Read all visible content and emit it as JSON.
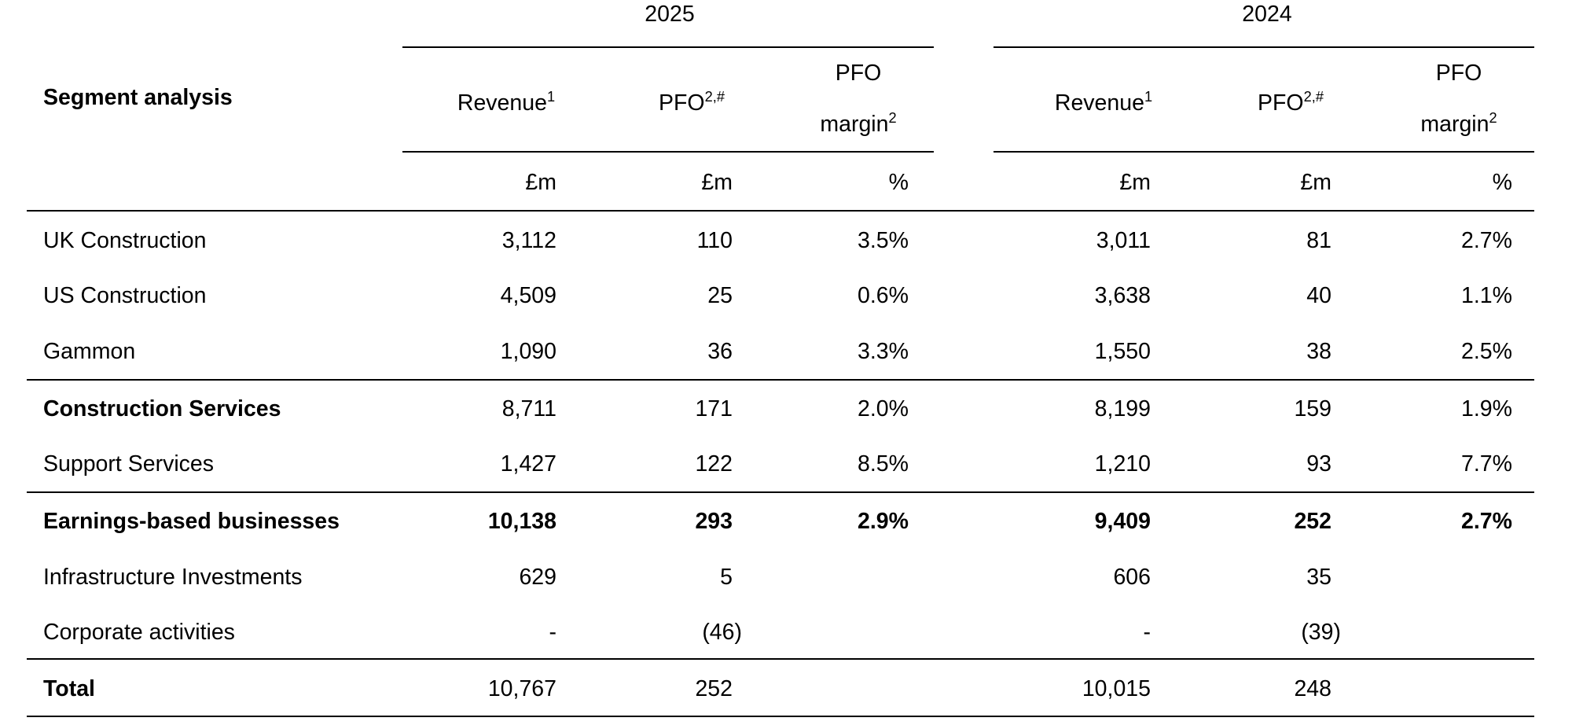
{
  "years": {
    "current": "2025",
    "prior": "2024"
  },
  "header": {
    "title": "Segment analysis",
    "revenue": "Revenue",
    "revenue_sup": "1",
    "pfo": "PFO",
    "pfo_sup": "2,#",
    "pfo_margin_line1": "PFO",
    "pfo_margin_line2": "margin",
    "pfo_margin_sup": "2"
  },
  "units": {
    "revenue": "£m",
    "pfo": "£m",
    "margin": "%"
  },
  "rows": [
    {
      "label": "UK Construction",
      "bold": false,
      "y2025": {
        "revenue": "3,112",
        "pfo": "110",
        "margin": "3.5%"
      },
      "y2024": {
        "revenue": "3,011",
        "pfo": "81",
        "margin": "2.7%"
      }
    },
    {
      "label": "US Construction",
      "bold": false,
      "y2025": {
        "revenue": "4,509",
        "pfo": "25",
        "margin": "0.6%"
      },
      "y2024": {
        "revenue": "3,638",
        "pfo": "40",
        "margin": "1.1%"
      }
    },
    {
      "label": "Gammon",
      "bold": false,
      "y2025": {
        "revenue": "1,090",
        "pfo": "36",
        "margin": "3.3%"
      },
      "y2024": {
        "revenue": "1,550",
        "pfo": "38",
        "margin": "2.5%"
      }
    },
    {
      "label": "Construction Services",
      "bold": true,
      "y2025": {
        "revenue": "8,711",
        "pfo": "171",
        "margin": "2.0%"
      },
      "y2024": {
        "revenue": "8,199",
        "pfo": "159",
        "margin": "1.9%"
      }
    },
    {
      "label": "Support Services",
      "bold": false,
      "y2025": {
        "revenue": "1,427",
        "pfo": "122",
        "margin": "8.5%"
      },
      "y2024": {
        "revenue": "1,210",
        "pfo": "93",
        "margin": "7.7%"
      }
    },
    {
      "label": "Earnings-based businesses",
      "bold": true,
      "y2025": {
        "revenue": "10,138",
        "pfo": "293",
        "margin": "2.9%"
      },
      "y2024": {
        "revenue": "9,409",
        "pfo": "252",
        "margin": "2.7%"
      }
    },
    {
      "label": "Infrastructure Investments",
      "bold": false,
      "y2025": {
        "revenue": "629",
        "pfo": "5",
        "margin": ""
      },
      "y2024": {
        "revenue": "606",
        "pfo": "35",
        "margin": ""
      }
    },
    {
      "label": "Corporate activities",
      "bold": false,
      "y2025": {
        "revenue": "-",
        "pfo": "(46)",
        "margin": ""
      },
      "y2024": {
        "revenue": "-",
        "pfo": "(39)",
        "margin": ""
      }
    },
    {
      "label": "Total",
      "bold": true,
      "y2025": {
        "revenue": "10,767",
        "pfo": "252",
        "margin": ""
      },
      "y2024": {
        "revenue": "10,015",
        "pfo": "248",
        "margin": ""
      }
    }
  ]
}
